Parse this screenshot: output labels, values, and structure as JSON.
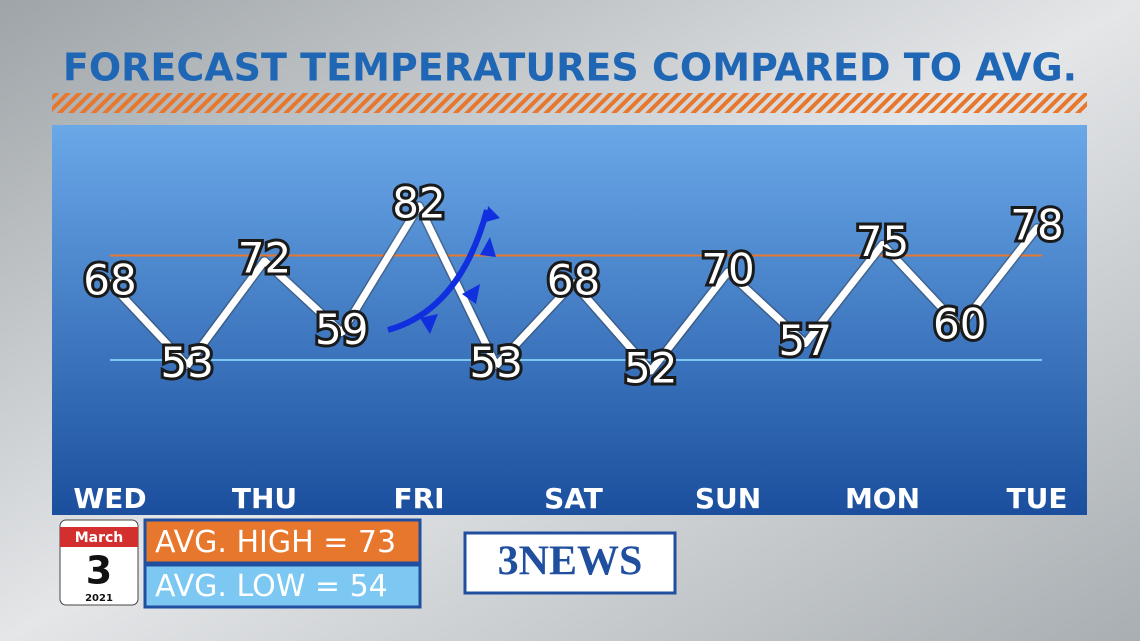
{
  "chart_data": {
    "type": "line",
    "title": "FORECAST TEMPERATURES COMPARED TO AVG.",
    "categories": [
      "WED",
      null,
      "THU",
      null,
      "FRI",
      null,
      "SAT",
      null,
      "SUN",
      null,
      "MON",
      null,
      "TUE"
    ],
    "values": [
      68,
      53,
      72,
      59,
      82,
      53,
      68,
      52,
      70,
      57,
      75,
      60,
      78
    ],
    "color": "#ffffff",
    "avg_high": {
      "label": "AVG. HIGH =",
      "value": 73,
      "color": "#e8772e"
    },
    "avg_low": {
      "label": "AVG. LOW =",
      "value": 54,
      "color": "#7cc8f2"
    },
    "date": {
      "month": "March",
      "day": "3",
      "year": "2021"
    },
    "logo": "3NEWS"
  }
}
